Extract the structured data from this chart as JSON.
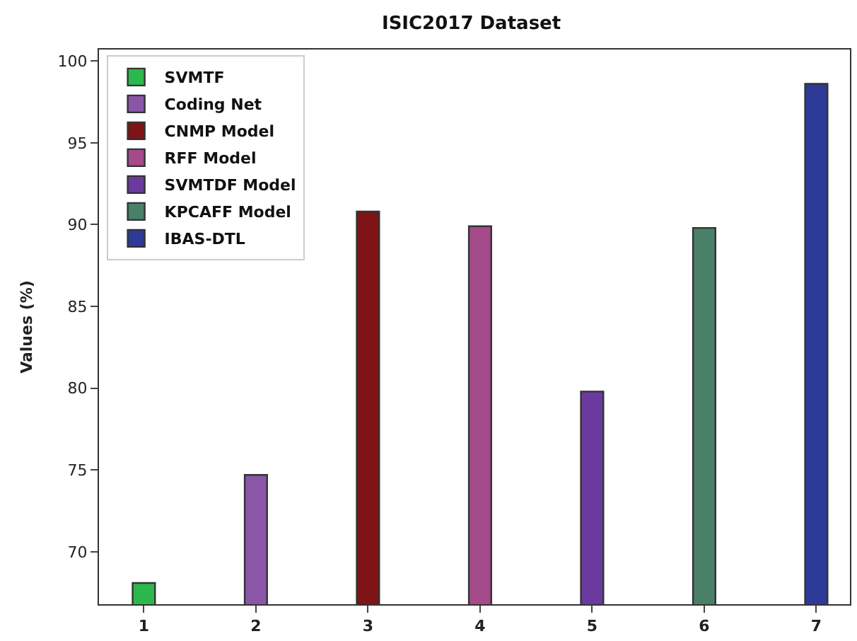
{
  "chart_data": {
    "type": "bar",
    "title": "ISIC2017 Dataset",
    "ylabel": "Values (%)",
    "categories": [
      "1",
      "2",
      "3",
      "4",
      "5",
      "6",
      "7"
    ],
    "series": [
      {
        "name": "SVMTF",
        "color": "#2db84d",
        "values": [
          68.1,
          null,
          null,
          null,
          null,
          null,
          null
        ]
      },
      {
        "name": "Coding Net",
        "color": "#8a56a8",
        "values": [
          null,
          74.7,
          null,
          null,
          null,
          null,
          null
        ]
      },
      {
        "name": "CNMP Model",
        "color": "#7f1416",
        "values": [
          null,
          null,
          90.8,
          null,
          null,
          null,
          null
        ]
      },
      {
        "name": "RFF Model",
        "color": "#a54a8a",
        "values": [
          null,
          null,
          null,
          89.9,
          null,
          null,
          null
        ]
      },
      {
        "name": "SVMTDF Model",
        "color": "#6a3a9e",
        "values": [
          null,
          null,
          null,
          null,
          79.8,
          null,
          null
        ]
      },
      {
        "name": "KPCAFF Model",
        "color": "#4a8068",
        "values": [
          null,
          null,
          null,
          null,
          null,
          89.8,
          null
        ]
      },
      {
        "name": "IBAS-DTL",
        "color": "#2e3a98",
        "values": [
          null,
          null,
          null,
          null,
          null,
          null,
          98.6
        ]
      }
    ],
    "ylim": [
      66.8,
      100.7
    ],
    "yticks": [
      70,
      75,
      80,
      85,
      90,
      95,
      100
    ],
    "legend": "top left"
  }
}
